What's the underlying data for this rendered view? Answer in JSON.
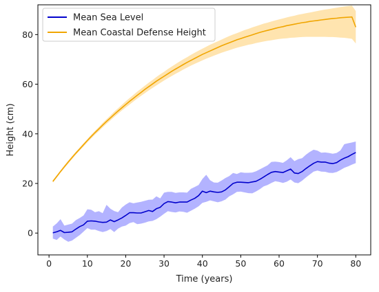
{
  "chart_data": {
    "type": "line",
    "xlabel": "Time (years)",
    "ylabel": "Height (cm)",
    "xlim": [
      -2.9,
      83.9
    ],
    "ylim": [
      -8.8,
      92.0
    ],
    "xticks": [
      0,
      10,
      20,
      30,
      40,
      50,
      60,
      70,
      80
    ],
    "yticks": [
      0,
      20,
      40,
      60,
      80
    ],
    "grid": false,
    "legend_position": "upper-left",
    "x": [
      1,
      2,
      3,
      4,
      5,
      6,
      7,
      8,
      9,
      10,
      11,
      12,
      13,
      14,
      15,
      16,
      17,
      18,
      19,
      20,
      21,
      22,
      23,
      24,
      25,
      26,
      27,
      28,
      29,
      30,
      31,
      32,
      33,
      34,
      35,
      36,
      37,
      38,
      39,
      40,
      41,
      42,
      43,
      44,
      45,
      46,
      47,
      48,
      49,
      50,
      51,
      52,
      53,
      54,
      55,
      56,
      57,
      58,
      59,
      60,
      61,
      62,
      63,
      64,
      65,
      66,
      67,
      68,
      69,
      70,
      71,
      72,
      73,
      74,
      75,
      76,
      77,
      78,
      79,
      80
    ],
    "series": [
      {
        "name": "Mean Sea Level",
        "color": "#0000cc",
        "band_color": "#8080ff",
        "values": [
          0.1,
          0.5,
          1.1,
          0.2,
          0.3,
          0.5,
          1.6,
          2.6,
          3.3,
          4.8,
          4.9,
          4.8,
          4.5,
          4.3,
          4.4,
          5.3,
          4.6,
          5.3,
          6.1,
          7.1,
          8.2,
          8.2,
          8.1,
          8.1,
          8.6,
          9.1,
          8.7,
          9.8,
          10.4,
          11.9,
          12.7,
          12.5,
          12.2,
          12.5,
          12.5,
          12.5,
          13.3,
          14.0,
          15.1,
          16.9,
          16.3,
          16.9,
          16.6,
          16.4,
          16.6,
          17.4,
          18.7,
          20.0,
          20.5,
          20.5,
          20.4,
          20.3,
          20.6,
          20.9,
          21.7,
          22.6,
          23.6,
          24.5,
          24.8,
          24.6,
          24.4,
          25.1,
          25.8,
          24.2,
          24.0,
          24.8,
          26.0,
          27.1,
          28.1,
          28.8,
          28.6,
          28.6,
          28.2,
          28.0,
          28.4,
          29.4,
          30.2,
          30.8,
          31.7,
          32.5
        ],
        "lower": [
          -2.2,
          -2.8,
          -1.4,
          -2.6,
          -3.5,
          -3.0,
          -1.9,
          -0.8,
          0.6,
          2.0,
          1.4,
          1.4,
          0.8,
          0.4,
          0.8,
          1.6,
          0.4,
          1.8,
          2.6,
          3.0,
          4.0,
          4.4,
          3.6,
          3.8,
          4.2,
          4.7,
          4.9,
          5.6,
          6.6,
          7.8,
          8.8,
          8.5,
          8.3,
          8.7,
          8.6,
          8.2,
          9.0,
          9.8,
          10.8,
          12.2,
          12.6,
          13.2,
          12.8,
          12.4,
          12.8,
          13.5,
          14.8,
          15.6,
          16.6,
          16.7,
          16.4,
          16.1,
          16.0,
          16.8,
          17.7,
          18.8,
          19.4,
          20.2,
          20.9,
          20.6,
          20.2,
          20.7,
          21.6,
          20.4,
          20.1,
          21.1,
          22.4,
          23.6,
          24.8,
          25.2,
          24.8,
          24.7,
          24.3,
          24.2,
          24.6,
          25.4,
          26.3,
          26.9,
          27.6,
          28.2
        ],
        "upper": [
          2.6,
          3.9,
          5.6,
          3.0,
          3.4,
          3.8,
          5.2,
          6.1,
          7.1,
          9.6,
          9.4,
          8.4,
          8.8,
          8.0,
          11.4,
          9.8,
          8.9,
          8.4,
          10.3,
          11.5,
          12.4,
          12.0,
          12.3,
          12.6,
          13.0,
          13.4,
          13.5,
          14.8,
          14.0,
          16.3,
          16.6,
          16.6,
          16.2,
          16.4,
          16.4,
          16.3,
          17.8,
          18.6,
          19.4,
          21.8,
          23.5,
          21.3,
          20.4,
          20.3,
          21.2,
          22.2,
          23.0,
          24.2,
          23.8,
          24.5,
          24.3,
          24.3,
          24.4,
          24.9,
          25.7,
          26.5,
          27.3,
          28.7,
          28.8,
          28.6,
          28.3,
          29.3,
          30.6,
          29.0,
          29.8,
          30.2,
          31.6,
          32.7,
          33.6,
          33.2,
          32.4,
          32.5,
          32.3,
          32.0,
          32.3,
          33.3,
          35.8,
          36.2,
          36.5,
          36.9
        ]
      },
      {
        "name": "Mean Coastal Defense Height",
        "color": "#f0a500",
        "band_color": "#ffd27a",
        "values": [
          20.8,
          22.8,
          24.8,
          26.7,
          28.6,
          30.4,
          32.2,
          33.9,
          35.6,
          37.3,
          38.9,
          40.5,
          42.0,
          43.5,
          45.0,
          46.4,
          47.8,
          49.2,
          50.5,
          51.8,
          53.1,
          54.3,
          55.5,
          56.7,
          57.9,
          59.0,
          60.1,
          61.2,
          62.2,
          63.2,
          64.2,
          65.2,
          66.1,
          67.0,
          67.9,
          68.8,
          69.6,
          70.4,
          71.2,
          72.0,
          72.7,
          73.4,
          74.1,
          74.8,
          75.5,
          76.1,
          76.7,
          77.3,
          77.9,
          78.4,
          78.9,
          79.4,
          79.9,
          80.4,
          80.9,
          81.3,
          81.7,
          82.1,
          82.5,
          82.9,
          83.2,
          83.6,
          83.9,
          84.2,
          84.5,
          84.8,
          85.0,
          85.3,
          85.5,
          85.7,
          85.9,
          86.1,
          86.3,
          86.5,
          86.6,
          86.8,
          86.9,
          87.0,
          87.1,
          83.0
        ],
        "lower": [
          20.3,
          22.3,
          24.3,
          26.2,
          28.0,
          29.8,
          31.6,
          33.3,
          34.9,
          36.6,
          38.1,
          39.7,
          41.1,
          42.6,
          44.0,
          45.4,
          46.8,
          48.1,
          49.4,
          50.6,
          51.8,
          53.0,
          54.2,
          55.3,
          56.4,
          57.5,
          58.5,
          59.5,
          60.5,
          61.5,
          62.4,
          63.3,
          64.2,
          65.0,
          65.9,
          66.7,
          67.5,
          68.2,
          68.9,
          69.6,
          70.3,
          70.9,
          71.5,
          72.1,
          72.7,
          73.2,
          73.7,
          74.2,
          74.7,
          75.1,
          75.5,
          75.9,
          76.2,
          76.6,
          76.9,
          77.2,
          77.5,
          77.7,
          78.0,
          78.2,
          78.4,
          78.5,
          78.7,
          78.8,
          78.9,
          79.0,
          79.1,
          79.1,
          79.1,
          79.1,
          79.1,
          79.1,
          79.0,
          79.0,
          78.9,
          78.8,
          78.7,
          78.5,
          78.3,
          76.4
        ],
        "upper": [
          21.3,
          23.3,
          25.3,
          27.3,
          29.2,
          31.0,
          32.8,
          34.5,
          36.2,
          37.9,
          39.6,
          41.2,
          42.8,
          44.4,
          45.9,
          47.4,
          48.9,
          50.3,
          51.7,
          53.1,
          54.4,
          55.7,
          57.0,
          58.2,
          59.4,
          60.6,
          61.7,
          62.9,
          64.0,
          65.0,
          66.1,
          67.1,
          68.1,
          69.1,
          70.0,
          70.9,
          71.8,
          72.7,
          73.5,
          74.3,
          75.1,
          75.9,
          76.6,
          77.3,
          78.0,
          78.7,
          79.4,
          80.0,
          80.6,
          81.2,
          81.8,
          82.3,
          82.9,
          83.4,
          83.9,
          84.4,
          84.8,
          85.3,
          85.7,
          86.1,
          86.5,
          86.9,
          87.3,
          87.6,
          88.0,
          88.3,
          88.6,
          88.9,
          89.2,
          89.5,
          89.8,
          90.1,
          90.3,
          90.6,
          90.8,
          91.1,
          91.3,
          91.5,
          91.7,
          89.5
        ]
      }
    ]
  }
}
